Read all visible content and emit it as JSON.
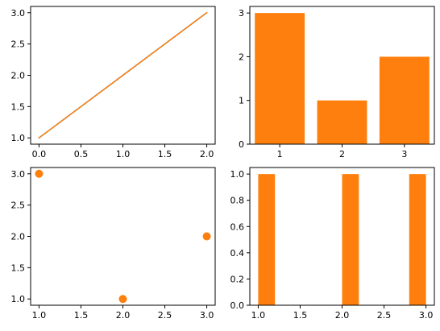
{
  "chart_data": [
    {
      "type": "line",
      "x": [
        0,
        1,
        2
      ],
      "series": [
        {
          "values": [
            1,
            2,
            3
          ],
          "color": "#1f77b4"
        },
        {
          "values": [
            1,
            2,
            3
          ],
          "color": "#ff7f0e"
        }
      ],
      "xlim": [
        -0.1,
        2.1
      ],
      "ylim": [
        0.9,
        3.1
      ],
      "xticks": [
        0,
        0.5,
        1,
        1.5,
        2
      ],
      "xtick_labels": [
        "0.0",
        "0.5",
        "1.0",
        "1.5",
        "2.0"
      ],
      "yticks": [
        1,
        1.5,
        2,
        2.5,
        3
      ],
      "ytick_labels": [
        "1.0",
        "1.5",
        "2.0",
        "2.5",
        "3.0"
      ],
      "grid": false
    },
    {
      "type": "bar",
      "categories": [
        "1",
        "2",
        "3"
      ],
      "x": [
        1,
        2,
        3
      ],
      "values": [
        3,
        1,
        2
      ],
      "color": "#ff7f0e",
      "xlim": [
        0.52,
        3.48
      ],
      "ylim": [
        0,
        3.15
      ],
      "xticks": [
        1,
        2,
        3
      ],
      "xtick_labels": [
        "1",
        "2",
        "3"
      ],
      "yticks": [
        0,
        1,
        2,
        3
      ],
      "ytick_labels": [
        "0",
        "1",
        "2",
        "3"
      ],
      "grid": false
    },
    {
      "type": "scatter",
      "x": [
        1,
        3,
        2
      ],
      "y": [
        3,
        2,
        1
      ],
      "color": "#ff7f0e",
      "xlim": [
        0.9,
        3.1
      ],
      "ylim": [
        0.9,
        3.1
      ],
      "xticks": [
        1,
        1.5,
        2,
        2.5,
        3
      ],
      "xtick_labels": [
        "1.0",
        "1.5",
        "2.0",
        "2.5",
        "3.0"
      ],
      "yticks": [
        1,
        1.5,
        2,
        2.5,
        3
      ],
      "ytick_labels": [
        "1.0",
        "1.5",
        "2.0",
        "2.5",
        "3.0"
      ],
      "grid": false
    },
    {
      "type": "bar",
      "bins": [
        [
          1.0,
          1.2
        ],
        [
          2.0,
          2.2
        ],
        [
          2.8,
          3.0
        ]
      ],
      "values": [
        1,
        1,
        1
      ],
      "color": "#ff7f0e",
      "xlim": [
        0.9,
        3.1
      ],
      "ylim": [
        0,
        1.05
      ],
      "xticks": [
        1,
        1.5,
        2,
        2.5,
        3
      ],
      "xtick_labels": [
        "1.0",
        "1.5",
        "2.0",
        "2.5",
        "3.0"
      ],
      "yticks": [
        0,
        0.2,
        0.4,
        0.6,
        0.8,
        1.0
      ],
      "ytick_labels": [
        "0.0",
        "0.2",
        "0.4",
        "0.6",
        "0.8",
        "1.0"
      ],
      "grid": false
    }
  ]
}
